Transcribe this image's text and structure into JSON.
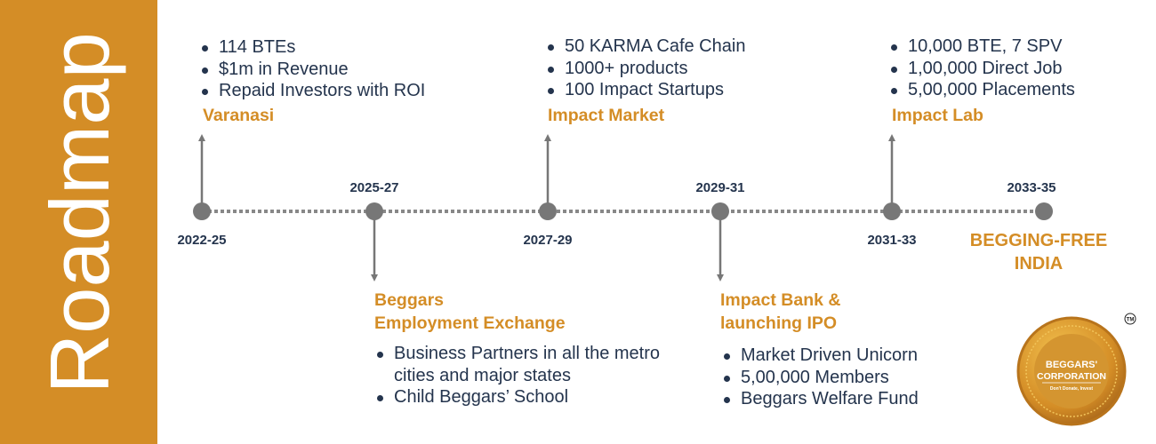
{
  "sidebar": {
    "title": "Roadmap",
    "color": "#d48d26"
  },
  "milestones": [
    {
      "period": "2022-25",
      "heading": "Varanasi",
      "items": [
        "114 BTEs",
        "$1m in Revenue",
        "Repaid Investors with ROI"
      ],
      "direction": "up"
    },
    {
      "period": "2025-27",
      "heading": "Beggars Employment Exchange",
      "heading_lines": [
        "Beggars",
        "Employment Exchange"
      ],
      "items": [
        "Business Partners in all the metro cities and major states",
        "Child Beggars’ School"
      ],
      "direction": "down"
    },
    {
      "period": "2027-29",
      "heading": "Impact Market",
      "items": [
        "50 KARMA Cafe Chain",
        "1000+ products",
        "100 Impact Startups"
      ],
      "direction": "up"
    },
    {
      "period": "2029-31",
      "heading": "Impact Bank & launching IPO",
      "heading_lines": [
        "Impact Bank &",
        "launching IPO"
      ],
      "items": [
        "Market Driven Unicorn",
        "5,00,000 Members",
        "Beggars Welfare Fund"
      ],
      "direction": "down"
    },
    {
      "period": "2031-33",
      "heading": "Impact Lab",
      "items": [
        "10,000 BTE, 7 SPV",
        "1,00,000 Direct Job",
        "5,00,000 Placements"
      ],
      "direction": "up"
    },
    {
      "period": "2033-35",
      "goal_lines": [
        "BEGGING-FREE",
        "INDIA"
      ]
    }
  ],
  "logo": {
    "line1": "BEGGARS'",
    "line2": "CORPORATION",
    "tagline": "Don't Donate, Invest",
    "tm": "TM"
  }
}
